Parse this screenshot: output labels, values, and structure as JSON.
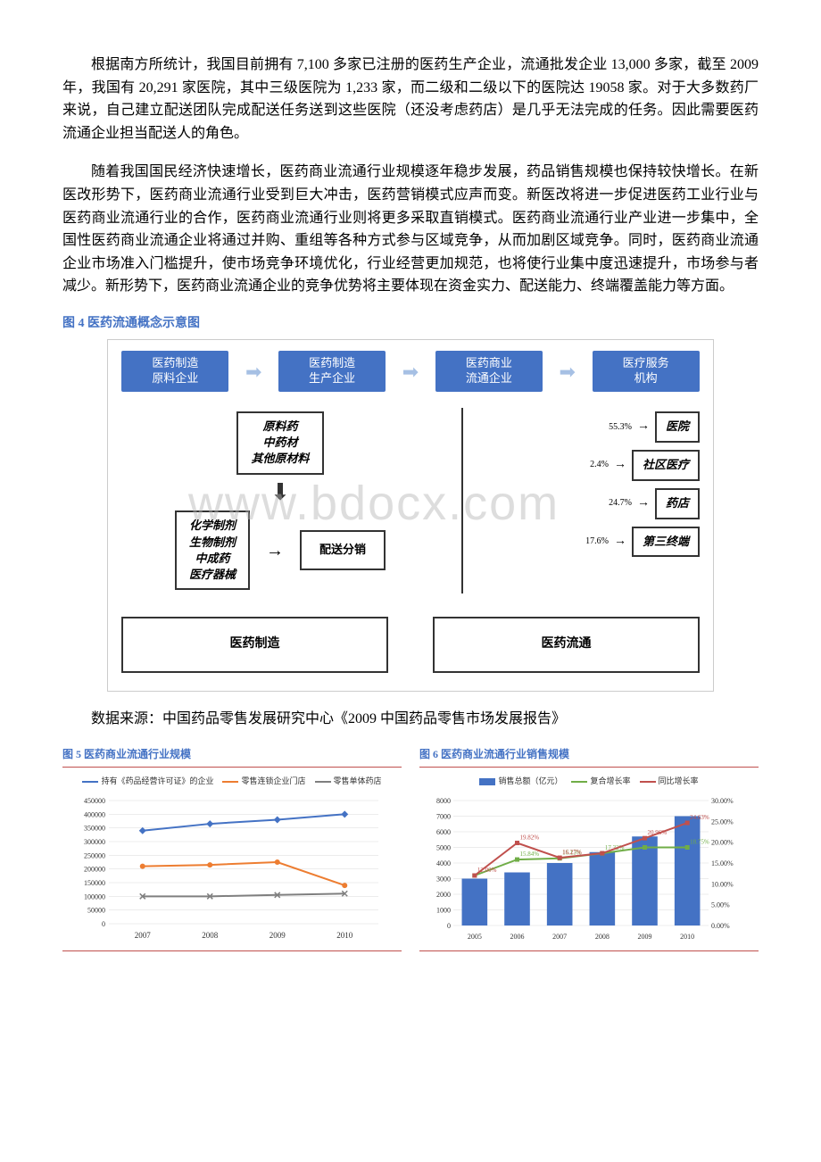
{
  "paragraphs": {
    "p1": "根据南方所统计，我国目前拥有 7,100 多家已注册的医药生产企业，流通批发企业 13,000 多家，截至 2009 年，我国有 20,291 家医院，其中三级医院为 1,233 家，而二级和二级以下的医院达 19058 家。对于大多数药厂来说，自己建立配送团队完成配送任务送到这些医院（还没考虑药店）是几乎无法完成的任务。因此需要医药流通企业担当配送人的角色。",
    "p2": "随着我国国民经济快速增长，医药商业流通行业规模逐年稳步发展，药品销售规模也保持较快增长。在新医改形势下，医药商业流通行业受到巨大冲击，医药营销模式应声而变。新医改将进一步促进医药工业行业与医药商业流通行业的合作，医药商业流通行业则将更多采取直销模式。医药商业流通行业产业进一步集中，全国性医药商业流通企业将通过并购、重组等各种方式参与区域竞争，从而加剧区域竞争。同时，医药商业流通企业市场准入门槛提升，使市场竞争环境优化，行业经营更加规范，也将使行业集中度迅速提升，市场参与者减少。新形势下，医药商业流通企业的竞争优势将主要体现在资金实力、配送能力、终端覆盖能力等方面。"
  },
  "fig4": {
    "title": "图 4 医药流通概念示意图",
    "top_boxes": [
      "医药制造\n原料企业",
      "医药制造\n生产企业",
      "医药商业\n流通企业",
      "医疗服务\n机构"
    ],
    "raw_box": "原料药\n中药材\n其他原材料",
    "prod_box": "化学制剂\n生物制剂\n中成药\n医疗器械",
    "dist_box": "配送分销",
    "terminals": [
      {
        "pct": "55.3%",
        "label": "医院"
      },
      {
        "pct": "2.4%",
        "label": "社区医疗"
      },
      {
        "pct": "24.7%",
        "label": "药店"
      },
      {
        "pct": "17.6%",
        "label": "第三终端"
      }
    ],
    "bottom_boxes": [
      "医药制造",
      "医药流通"
    ],
    "watermark": "www.bdocx.com",
    "colors": {
      "box_bg": "#4472c4",
      "box_fg": "#ffffff",
      "arrow": "#a6c0e4",
      "border": "#333333"
    }
  },
  "source": "数据来源：中国药品零售发展研究中心《2009 中国药品零售市场发展报告》",
  "fig5": {
    "title": "图 5 医药商业流通行业规模",
    "type": "line",
    "legend": [
      "持有《药品经营许可证》的企业",
      "零售连锁企业门店",
      "零售单体药店"
    ],
    "colors": [
      "#4472c4",
      "#ed7d31",
      "#7f7f7f"
    ],
    "categories": [
      "2007",
      "2008",
      "2009",
      "2010"
    ],
    "series": [
      [
        340000,
        365000,
        380000,
        400000
      ],
      [
        210000,
        215000,
        225000,
        140000
      ],
      [
        100000,
        100000,
        105000,
        110000
      ]
    ],
    "ylim": [
      0,
      450000
    ],
    "ytick_step": 50000,
    "background": "#ffffff",
    "grid_color": "#d9d9d9",
    "marker_style": [
      "diamond",
      "circle",
      "x"
    ],
    "line_width": 2,
    "label_fontsize": 9
  },
  "fig6": {
    "title": "图 6 医药商业流通行业销售规模",
    "type": "bar+line",
    "legend": [
      "销售总额（亿元）",
      "复合增长率",
      "同比增长率"
    ],
    "bar_color": "#4472c4",
    "line_colors": [
      "#70ad47",
      "#c0504d"
    ],
    "categories": [
      "2005",
      "2006",
      "2007",
      "2008",
      "2009",
      "2010"
    ],
    "bar_values": [
      3000,
      3400,
      4000,
      4700,
      5700,
      7000
    ],
    "line1_values": [
      12.0,
      15.84,
      16.13,
      17.32,
      18.75,
      18.75
    ],
    "line2_values": [
      12.0,
      19.82,
      16.27,
      17.35,
      20.96,
      24.63
    ],
    "point_labels_line2": [
      "12.00",
      "19.82",
      "16.27",
      "",
      "20.96",
      "24.63"
    ],
    "point_labels_line1": [
      "",
      "15.84",
      "16.13",
      "17.32",
      "",
      "18.75"
    ],
    "y1_lim": [
      0,
      8000
    ],
    "y1_tick": 1000,
    "y2_lim": [
      0,
      30
    ],
    "y2_tick": 5,
    "background": "#ffffff",
    "grid_color": "#d9d9d9",
    "label_fontsize": 9,
    "bar_width": 0.6
  }
}
